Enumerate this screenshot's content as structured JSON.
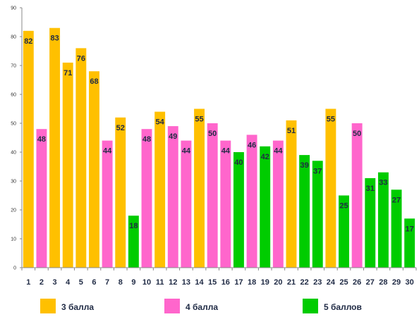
{
  "chart_data": {
    "type": "bar",
    "categories": [
      "1",
      "2",
      "3",
      "4",
      "5",
      "6",
      "7",
      "8",
      "9",
      "10",
      "11",
      "12",
      "13",
      "14",
      "15",
      "16",
      "17",
      "18",
      "19",
      "20",
      "21",
      "22",
      "23",
      "24",
      "25",
      "26",
      "27",
      "28",
      "29",
      "30"
    ],
    "values": [
      82,
      48,
      83,
      71,
      76,
      68,
      44,
      52,
      18,
      48,
      54,
      49,
      44,
      55,
      50,
      44,
      40,
      46,
      42,
      44,
      51,
      39,
      37,
      55,
      25,
      50,
      31,
      33,
      27,
      17
    ],
    "groups": [
      "3",
      "4",
      "3",
      "3",
      "3",
      "3",
      "4",
      "3",
      "5",
      "4",
      "3",
      "4",
      "4",
      "3",
      "4",
      "4",
      "5",
      "4",
      "5",
      "4",
      "3",
      "5",
      "5",
      "3",
      "5",
      "4",
      "5",
      "5",
      "5",
      "5"
    ],
    "ylim": [
      0,
      90
    ],
    "yticks": [
      0,
      10,
      20,
      30,
      40,
      50,
      60,
      70,
      80,
      90
    ],
    "grid": false,
    "legend_position": "bottom",
    "legend": [
      {
        "key": "3",
        "label": "3 балла",
        "color": "#FFC000"
      },
      {
        "key": "4",
        "label": "4 балла",
        "color": "#FF66CC"
      },
      {
        "key": "5",
        "label": "5 баллов",
        "color": "#00CC00"
      }
    ]
  }
}
